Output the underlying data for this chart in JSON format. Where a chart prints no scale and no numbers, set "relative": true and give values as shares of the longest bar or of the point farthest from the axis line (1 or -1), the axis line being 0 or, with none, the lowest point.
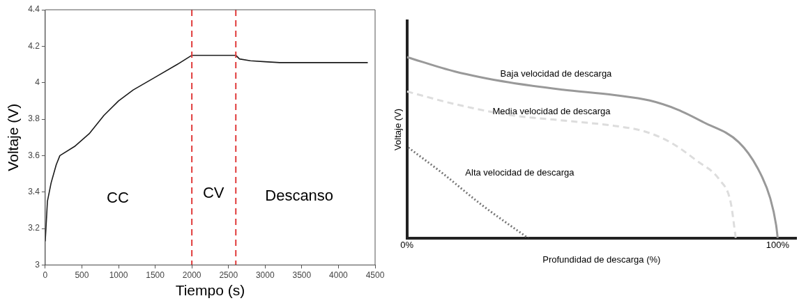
{
  "chart_data": [
    {
      "type": "line",
      "xlabel": "Tiempo (s)",
      "ylabel": "Voltaje (V)",
      "xlim": [
        0,
        4500
      ],
      "ylim": [
        3,
        4.4
      ],
      "xticks": [
        0,
        500,
        1000,
        1500,
        2000,
        2500,
        3000,
        3500,
        4000,
        4500
      ],
      "yticks": [
        3,
        3.2,
        3.4,
        3.6,
        3.8,
        4,
        4.2,
        4.4
      ],
      "grid": false,
      "legend": false,
      "marker": "none",
      "series": [
        {
          "color": "#1a1a1a",
          "x": [
            0,
            10,
            30,
            80,
            150,
            200,
            400,
            600,
            800,
            1000,
            1200,
            1500,
            1800,
            2000,
            2600,
            2650,
            2800,
            3000,
            3200,
            4400
          ],
          "values": [
            3.13,
            3.2,
            3.35,
            3.45,
            3.55,
            3.6,
            3.65,
            3.72,
            3.82,
            3.9,
            3.96,
            4.03,
            4.1,
            4.15,
            4.15,
            4.13,
            4.12,
            4.115,
            4.11,
            4.11
          ]
        }
      ],
      "ref_lines": [
        {
          "axis": "x",
          "value": 2000,
          "color": "#e03a3a",
          "line_style": "dashed"
        },
        {
          "axis": "x",
          "value": 2600,
          "color": "#e03a3a",
          "line_style": "dashed"
        }
      ],
      "annotations": [
        "CC",
        "CV",
        "Descanso"
      ]
    },
    {
      "type": "line",
      "relative": true,
      "xlabel": "Profundidad de descarga (%)",
      "ylabel": "Voltaje (V)",
      "xlim": [
        0,
        105
      ],
      "xticks": [
        {
          "value": 0,
          "label": "0%"
        },
        {
          "value": 100,
          "label": "100%"
        }
      ],
      "grid": false,
      "legend": false,
      "marker": "none",
      "series": [
        {
          "name": "Baja velocidad de descarga",
          "color": "#999999",
          "line_style": "solid",
          "x": [
            0,
            13,
            27.6,
            42,
            56,
            65.5,
            73,
            80,
            89.5,
            94.5,
            98,
            99.6,
            100
          ],
          "values": [
            1,
            0.92,
            0.86,
            0.82,
            0.79,
            0.76,
            0.71,
            0.64,
            0.53,
            0.39,
            0.22,
            0.07,
            0
          ]
        },
        {
          "name": "Media velocidad de descarga",
          "color": "#dddddd",
          "line_style": "dashed",
          "x": [
            0,
            13,
            27.6,
            42,
            56,
            64,
            71,
            78,
            84.4,
            87.3,
            88.7
          ],
          "values": [
            0.81,
            0.74,
            0.68,
            0.65,
            0.62,
            0.59,
            0.53,
            0.43,
            0.32,
            0.2,
            0
          ]
        },
        {
          "name": "Alta velocidad de descarga",
          "color": "#777777",
          "line_style": "dotted",
          "x": [
            0.4,
            9.5,
            20.4,
            32.7
          ],
          "values": [
            0.5,
            0.36,
            0.18,
            0
          ]
        }
      ]
    }
  ]
}
